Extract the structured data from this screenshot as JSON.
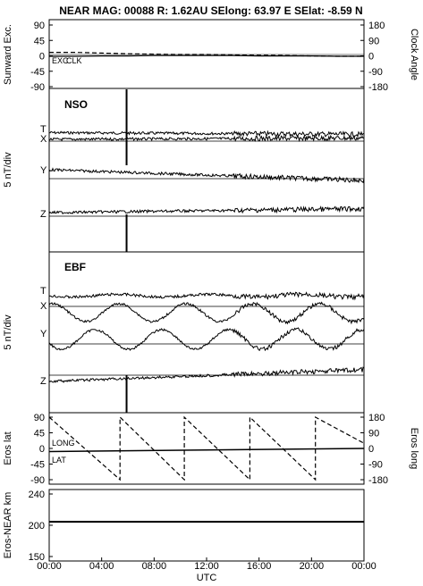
{
  "header": {
    "title": "NEAR MAG: 00088  R: 1.62AU  SElong:    63.97 E  SElat:   -8.59 N"
  },
  "chart_data": [
    {
      "type": "line",
      "panel": "top",
      "ylabel_left": "Sunward Exc.",
      "ylabel_right": "Clock Angle",
      "yticks_left": [
        "90",
        "45",
        "0",
        "-45",
        "-90"
      ],
      "yticks_right": [
        "180",
        "90",
        "0",
        "-90",
        "-180"
      ],
      "ylim": [
        -90,
        90
      ],
      "annotations": [
        "EXC",
        "CLK"
      ],
      "series": [
        {
          "name": "EXC",
          "x": [
            0,
            2,
            4,
            6,
            8,
            10,
            12,
            14,
            16,
            18,
            20,
            22,
            24
          ],
          "y": [
            6,
            6,
            4,
            2,
            1,
            0,
            0,
            -1,
            -2,
            -3,
            -4,
            -5,
            -5
          ]
        },
        {
          "name": "CLK",
          "x": [
            0,
            2,
            4,
            6,
            8,
            10,
            12,
            14,
            16,
            18,
            20,
            22,
            24
          ],
          "y": [
            -5,
            -5,
            -4,
            -4,
            -3,
            -3,
            -3,
            -3,
            -4,
            -4,
            -4,
            -5,
            -5
          ]
        }
      ]
    },
    {
      "type": "line",
      "panel": "NSO",
      "title": "NSO",
      "ylabel": "5 nT/div",
      "components": [
        "T",
        "X",
        "Y",
        "Z"
      ]
    },
    {
      "type": "line",
      "panel": "EBF",
      "title": "EBF",
      "ylabel": "5 nT/div",
      "components": [
        "T",
        "X",
        "Y",
        "Z"
      ]
    },
    {
      "type": "line",
      "panel": "eros",
      "ylabel_left": "Eros lat",
      "ylabel_right": "Eros long",
      "yticks_left": [
        "90",
        "45",
        "0",
        "-45",
        "-90"
      ],
      "yticks_right": [
        "180",
        "90",
        "0",
        "-90",
        "-180"
      ],
      "ylim": [
        -90,
        90
      ],
      "annotations": [
        "LONG",
        "LAT"
      ],
      "series": [
        {
          "name": "LAT",
          "x": [
            0,
            24
          ],
          "y": [
            -9,
            0
          ]
        },
        {
          "name": "LONG",
          "x": [
            0,
            5.4,
            5.4,
            10.3,
            10.3,
            15.3,
            15.3,
            20.3,
            20.3,
            24
          ],
          "y": [
            180,
            -180,
            180,
            -180,
            180,
            -180,
            180,
            -180,
            180,
            30
          ]
        }
      ]
    },
    {
      "type": "line",
      "panel": "range",
      "ylabel": "Eros-NEAR km",
      "yticks": [
        "240",
        "200",
        "150"
      ],
      "series": [
        {
          "name": "range",
          "x": [
            0,
            24
          ],
          "y": [
            200,
            200
          ]
        }
      ]
    }
  ],
  "xaxis": {
    "ticks": [
      "00:00",
      "04:00",
      "08:00",
      "12:00",
      "16:00",
      "20:00",
      "00:00"
    ],
    "label": "UTC"
  }
}
